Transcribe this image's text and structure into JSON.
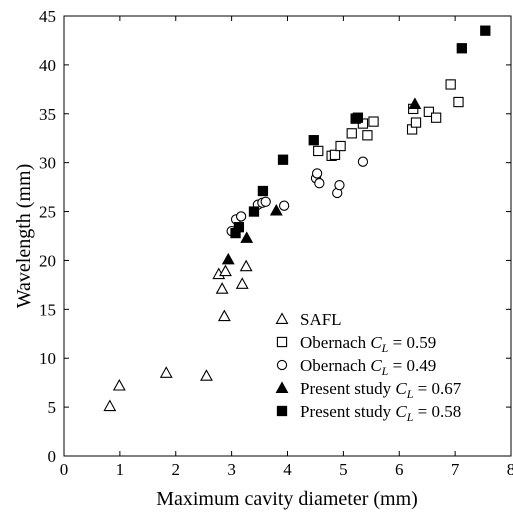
{
  "chart_data": {
    "type": "scatter",
    "xlabel": "Maximum cavity diameter (mm)",
    "ylabel": "Wavelength (mm)",
    "xlim": [
      0,
      8
    ],
    "ylim": [
      0,
      45
    ],
    "x_ticks": [
      "0",
      "1",
      "2",
      "3",
      "4",
      "5",
      "6",
      "7",
      "8"
    ],
    "y_ticks": [
      "0",
      "5",
      "10",
      "15",
      "20",
      "25",
      "30",
      "35",
      "40",
      "45"
    ],
    "grid": false,
    "legend_position": "bottom-right",
    "series": [
      {
        "name": "SAFL",
        "marker": "triangle-open",
        "points": [
          [
            0.82,
            5.1
          ],
          [
            0.99,
            7.2
          ],
          [
            1.83,
            8.5
          ],
          [
            2.55,
            8.2
          ],
          [
            2.87,
            14.3
          ],
          [
            2.83,
            17.1
          ],
          [
            2.77,
            18.6
          ],
          [
            2.89,
            18.9
          ],
          [
            3.19,
            17.6
          ],
          [
            3.26,
            19.4
          ]
        ]
      },
      {
        "name_prefix": "Obernach ",
        "name_var": "C",
        "name_sub": "L",
        "name_suffix": " = 0.59",
        "marker": "square-open",
        "points": [
          [
            4.55,
            31.2
          ],
          [
            4.79,
            30.7
          ],
          [
            4.85,
            30.8
          ],
          [
            4.95,
            31.7
          ],
          [
            5.15,
            33.0
          ],
          [
            5.35,
            34.0
          ],
          [
            5.43,
            32.8
          ],
          [
            5.54,
            34.2
          ],
          [
            6.23,
            33.4
          ],
          [
            6.3,
            34.1
          ],
          [
            6.53,
            35.2
          ],
          [
            6.66,
            34.6
          ],
          [
            6.92,
            38.0
          ],
          [
            7.06,
            36.2
          ],
          [
            6.25,
            35.5
          ]
        ]
      },
      {
        "name_prefix": "Obernach ",
        "name_var": "C",
        "name_sub": "L",
        "name_suffix": " = 0.49",
        "marker": "circle-open",
        "points": [
          [
            3.0,
            23.0
          ],
          [
            3.08,
            24.2
          ],
          [
            3.17,
            24.5
          ],
          [
            3.47,
            25.7
          ],
          [
            3.55,
            25.9
          ],
          [
            3.61,
            26.0
          ],
          [
            3.94,
            25.6
          ],
          [
            4.51,
            28.4
          ],
          [
            4.53,
            28.9
          ],
          [
            4.57,
            27.9
          ],
          [
            4.89,
            26.9
          ],
          [
            4.93,
            27.7
          ],
          [
            5.35,
            30.1
          ]
        ]
      },
      {
        "name_prefix": "Present study ",
        "name_var": "C",
        "name_sub": "L",
        "name_suffix": " = 0.67",
        "marker": "triangle-filled",
        "points": [
          [
            2.94,
            20.1
          ],
          [
            3.27,
            22.3
          ],
          [
            3.8,
            25.1
          ],
          [
            6.28,
            36.0
          ]
        ]
      },
      {
        "name_prefix": "Present study ",
        "name_var": "C",
        "name_sub": "L",
        "name_suffix": " = 0.58",
        "marker": "square-filled",
        "points": [
          [
            3.07,
            22.8
          ],
          [
            3.13,
            23.4
          ],
          [
            3.4,
            25.0
          ],
          [
            3.56,
            27.1
          ],
          [
            3.92,
            30.3
          ],
          [
            4.47,
            32.3
          ],
          [
            5.22,
            34.5
          ],
          [
            5.26,
            34.6
          ],
          [
            7.12,
            41.7
          ],
          [
            7.54,
            43.5
          ]
        ]
      }
    ]
  }
}
